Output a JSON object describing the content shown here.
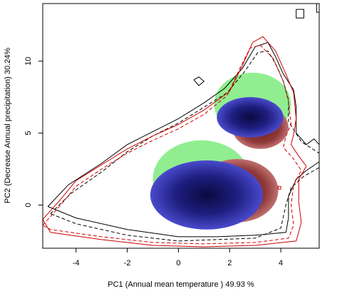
{
  "chart_data": {
    "type": "contour-density",
    "title": "",
    "xlabel": "PC1 (Annual mean temperature ) 49.93 %",
    "ylabel": "PC2 (Decrease Annual precipitation) 30.24%",
    "xlim": [
      -5.3,
      5.5
    ],
    "ylim": [
      -3.0,
      14.0
    ],
    "xticks": [
      -4,
      -2,
      0,
      2,
      4
    ],
    "yticks": [
      0,
      5,
      10
    ],
    "grid": false,
    "colors": {
      "overlap_light": "#90EE90",
      "overlap_dark_start": "#4040C0",
      "overlap_dark_end": "#0A0A40",
      "rust_start": "#C07070",
      "rust_end": "#6A1A1A",
      "contour_black": "#000000",
      "contour_red": "#D00000"
    },
    "regions": [
      {
        "kind": "green",
        "cx": 0.9,
        "cy": 1.8,
        "rx": 1.9,
        "ry": 2.7
      },
      {
        "kind": "green",
        "cx": 2.9,
        "cy": 7.0,
        "rx": 1.5,
        "ry": 2.2
      },
      {
        "kind": "rust",
        "cx": 2.3,
        "cy": 1.0,
        "rx": 1.6,
        "ry": 2.2
      },
      {
        "kind": "rust",
        "cx": 3.2,
        "cy": 5.4,
        "rx": 1.1,
        "ry": 1.5
      },
      {
        "kind": "blue",
        "cx": 1.1,
        "cy": 0.7,
        "rx": 2.2,
        "ry": 2.4
      },
      {
        "kind": "blue",
        "cx": 2.8,
        "cy": 6.1,
        "rx": 1.3,
        "ry": 1.4
      }
    ],
    "contours": [
      {
        "color": "black",
        "dash": "solid",
        "points": [
          [
            -5.1,
            -0.1
          ],
          [
            -4.3,
            1.4
          ],
          [
            -3.0,
            2.9
          ],
          [
            -2.0,
            4.2
          ],
          [
            -1.0,
            5.1
          ],
          [
            0.0,
            6.0
          ],
          [
            1.0,
            7.1
          ],
          [
            1.8,
            8.1
          ],
          [
            2.5,
            9.5
          ],
          [
            3.0,
            11.0
          ],
          [
            3.5,
            11.3
          ],
          [
            3.8,
            10.3
          ],
          [
            4.1,
            9.1
          ],
          [
            4.5,
            8.0
          ],
          [
            4.6,
            6.8
          ],
          [
            4.6,
            5.0
          ],
          [
            5.0,
            4.2
          ],
          [
            5.3,
            4.6
          ],
          [
            5.5,
            4.2
          ],
          [
            5.5,
            3.0
          ],
          [
            5.0,
            2.4
          ],
          [
            4.6,
            1.8
          ],
          [
            4.3,
            0.6
          ],
          [
            4.3,
            -0.9
          ],
          [
            4.2,
            -1.9
          ],
          [
            3.0,
            -2.1
          ],
          [
            1.5,
            -2.2
          ],
          [
            0.0,
            -2.2
          ],
          [
            -2.0,
            -1.7
          ],
          [
            -4.0,
            -0.9
          ],
          [
            -5.1,
            -0.1
          ]
        ]
      },
      {
        "color": "black",
        "dash": "dashed",
        "points": [
          [
            -5.0,
            -0.6
          ],
          [
            -4.2,
            0.8
          ],
          [
            -3.0,
            2.3
          ],
          [
            -2.0,
            3.7
          ],
          [
            -1.0,
            4.8
          ],
          [
            0.0,
            5.7
          ],
          [
            1.0,
            6.8
          ],
          [
            1.9,
            7.8
          ],
          [
            2.6,
            9.3
          ],
          [
            3.1,
            10.6
          ],
          [
            3.5,
            10.7
          ],
          [
            3.8,
            9.8
          ],
          [
            4.1,
            8.6
          ],
          [
            4.3,
            7.3
          ],
          [
            4.3,
            5.8
          ],
          [
            4.8,
            4.4
          ],
          [
            5.5,
            3.6
          ],
          [
            5.5,
            2.6
          ],
          [
            4.9,
            2.0
          ],
          [
            4.4,
            1.2
          ],
          [
            4.2,
            0.0
          ],
          [
            4.0,
            -1.6
          ],
          [
            3.0,
            -2.3
          ],
          [
            1.5,
            -2.4
          ],
          [
            0.0,
            -2.5
          ],
          [
            -2.0,
            -2.1
          ],
          [
            -4.0,
            -1.3
          ],
          [
            -5.0,
            -0.6
          ]
        ]
      },
      {
        "color": "red",
        "dash": "solid",
        "points": [
          [
            -5.3,
            -1.0
          ],
          [
            -4.6,
            0.4
          ],
          [
            -4.0,
            1.7
          ],
          [
            -3.0,
            2.8
          ],
          [
            -2.0,
            3.9
          ],
          [
            -1.0,
            4.8
          ],
          [
            0.0,
            5.6
          ],
          [
            1.0,
            6.6
          ],
          [
            2.0,
            7.9
          ],
          [
            2.5,
            9.7
          ],
          [
            2.9,
            11.3
          ],
          [
            3.3,
            11.7
          ],
          [
            3.8,
            10.7
          ],
          [
            4.2,
            9.1
          ],
          [
            4.5,
            7.8
          ],
          [
            4.6,
            6.0
          ],
          [
            4.5,
            4.9
          ],
          [
            4.4,
            4.2
          ],
          [
            4.7,
            3.4
          ],
          [
            5.0,
            2.7
          ],
          [
            4.7,
            1.8
          ],
          [
            4.7,
            0.2
          ],
          [
            4.8,
            -1.2
          ],
          [
            4.6,
            -2.5
          ],
          [
            3.0,
            -2.8
          ],
          [
            1.0,
            -2.9
          ],
          [
            -1.0,
            -2.8
          ],
          [
            -3.0,
            -2.4
          ],
          [
            -5.0,
            -1.9
          ],
          [
            -5.3,
            -1.0
          ]
        ]
      },
      {
        "color": "red",
        "dash": "dashed",
        "points": [
          [
            -5.3,
            -1.4
          ],
          [
            -4.6,
            0.0
          ],
          [
            -4.0,
            1.3
          ],
          [
            -3.0,
            2.5
          ],
          [
            -2.0,
            3.6
          ],
          [
            -1.0,
            4.5
          ],
          [
            0.0,
            5.3
          ],
          [
            1.0,
            6.3
          ],
          [
            1.9,
            7.6
          ],
          [
            2.4,
            9.5
          ],
          [
            2.8,
            10.9
          ],
          [
            3.2,
            11.1
          ],
          [
            3.7,
            10.2
          ],
          [
            4.1,
            8.6
          ],
          [
            4.3,
            7.2
          ],
          [
            4.4,
            5.6
          ],
          [
            4.2,
            4.8
          ],
          [
            4.1,
            4.0
          ],
          [
            4.5,
            3.2
          ],
          [
            4.8,
            2.4
          ],
          [
            4.5,
            1.4
          ],
          [
            4.4,
            0.0
          ],
          [
            4.5,
            -1.4
          ],
          [
            4.3,
            -2.3
          ],
          [
            3.0,
            -2.6
          ],
          [
            1.0,
            -2.7
          ],
          [
            -1.0,
            -2.6
          ],
          [
            -3.0,
            -2.2
          ],
          [
            -5.0,
            -1.7
          ],
          [
            -5.3,
            -1.4
          ]
        ]
      },
      {
        "color": "black",
        "dash": "solid",
        "points": [
          [
            4.6,
            13.6
          ],
          [
            4.6,
            13.0
          ],
          [
            4.9,
            13.0
          ],
          [
            4.9,
            13.6
          ],
          [
            4.6,
            13.6
          ]
        ]
      },
      {
        "color": "black",
        "dash": "solid",
        "points": [
          [
            5.4,
            14.0
          ],
          [
            5.4,
            13.4
          ],
          [
            5.5,
            13.4
          ]
        ]
      },
      {
        "color": "black",
        "dash": "solid",
        "points": [
          [
            0.6,
            8.7
          ],
          [
            0.8,
            8.3
          ],
          [
            1.0,
            8.6
          ],
          [
            0.8,
            8.9
          ],
          [
            0.6,
            8.7
          ]
        ]
      },
      {
        "color": "red",
        "dash": "solid",
        "points": [
          [
            3.9,
            1.1
          ],
          [
            4.0,
            1.1
          ],
          [
            4.0,
            1.3
          ],
          [
            3.9,
            1.3
          ],
          [
            3.9,
            1.1
          ]
        ]
      }
    ]
  }
}
